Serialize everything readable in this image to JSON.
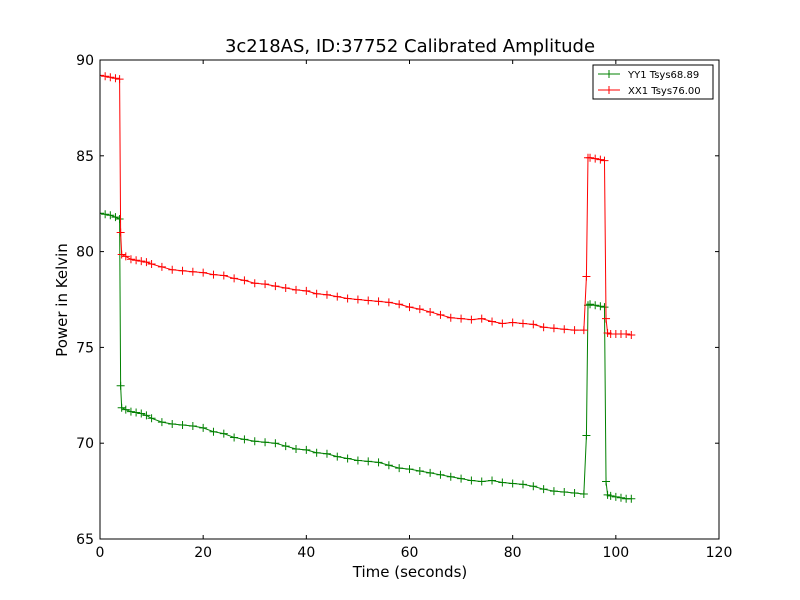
{
  "chart_data": {
    "type": "line",
    "title": "3c218AS, ID:37752 Calibrated Amplitude",
    "xlabel": "Time (seconds)",
    "ylabel": "Power in Kelvin",
    "xlim": [
      0,
      120
    ],
    "ylim": [
      65,
      90
    ],
    "x_ticks": [
      0,
      20,
      40,
      60,
      80,
      100,
      120
    ],
    "y_ticks": [
      65,
      70,
      75,
      80,
      85,
      90
    ],
    "grid": false,
    "legend_position": "top-right",
    "marker": "+",
    "series": [
      {
        "name": "YY1 Tsys68.89",
        "color": "#008000",
        "points": [
          [
            0,
            82.0
          ],
          [
            1,
            81.95
          ],
          [
            2,
            81.9
          ],
          [
            3,
            81.8
          ],
          [
            3.8,
            81.7
          ],
          [
            4.0,
            73.0
          ],
          [
            4.2,
            71.85
          ],
          [
            5,
            71.75
          ],
          [
            6,
            71.65
          ],
          [
            7,
            71.6
          ],
          [
            8,
            71.55
          ],
          [
            9,
            71.45
          ],
          [
            10,
            71.3
          ],
          [
            12,
            71.1
          ],
          [
            14,
            71.0
          ],
          [
            16,
            70.95
          ],
          [
            18,
            70.9
          ],
          [
            20,
            70.8
          ],
          [
            22,
            70.6
          ],
          [
            24,
            70.5
          ],
          [
            26,
            70.3
          ],
          [
            28,
            70.2
          ],
          [
            30,
            70.1
          ],
          [
            32,
            70.05
          ],
          [
            34,
            70.0
          ],
          [
            36,
            69.85
          ],
          [
            38,
            69.7
          ],
          [
            40,
            69.65
          ],
          [
            42,
            69.5
          ],
          [
            44,
            69.45
          ],
          [
            46,
            69.3
          ],
          [
            48,
            69.2
          ],
          [
            50,
            69.1
          ],
          [
            52,
            69.05
          ],
          [
            54,
            69.0
          ],
          [
            56,
            68.85
          ],
          [
            58,
            68.7
          ],
          [
            60,
            68.65
          ],
          [
            62,
            68.55
          ],
          [
            64,
            68.45
          ],
          [
            66,
            68.35
          ],
          [
            68,
            68.25
          ],
          [
            70,
            68.15
          ],
          [
            72,
            68.05
          ],
          [
            74,
            68.0
          ],
          [
            76,
            68.05
          ],
          [
            78,
            67.95
          ],
          [
            80,
            67.9
          ],
          [
            82,
            67.85
          ],
          [
            84,
            67.75
          ],
          [
            86,
            67.6
          ],
          [
            88,
            67.5
          ],
          [
            90,
            67.45
          ],
          [
            92,
            67.4
          ],
          [
            93.8,
            67.35
          ],
          [
            94.3,
            70.4
          ],
          [
            94.6,
            77.2
          ],
          [
            95,
            77.25
          ],
          [
            96,
            77.2
          ],
          [
            97,
            77.15
          ],
          [
            97.8,
            77.1
          ],
          [
            98.1,
            68.0
          ],
          [
            98.4,
            67.3
          ],
          [
            99,
            67.25
          ],
          [
            100,
            67.2
          ],
          [
            101,
            67.15
          ],
          [
            102,
            67.1
          ],
          [
            103,
            67.1
          ]
        ]
      },
      {
        "name": "XX1 Tsys76.00",
        "color": "#ff0000",
        "points": [
          [
            0,
            89.2
          ],
          [
            1,
            89.15
          ],
          [
            2,
            89.1
          ],
          [
            3,
            89.05
          ],
          [
            3.8,
            89.0
          ],
          [
            4.0,
            81.0
          ],
          [
            4.2,
            79.85
          ],
          [
            5,
            79.75
          ],
          [
            6,
            79.6
          ],
          [
            7,
            79.55
          ],
          [
            8,
            79.5
          ],
          [
            9,
            79.45
          ],
          [
            10,
            79.35
          ],
          [
            12,
            79.2
          ],
          [
            14,
            79.05
          ],
          [
            16,
            79.0
          ],
          [
            18,
            78.95
          ],
          [
            20,
            78.9
          ],
          [
            22,
            78.8
          ],
          [
            24,
            78.75
          ],
          [
            26,
            78.6
          ],
          [
            28,
            78.5
          ],
          [
            30,
            78.35
          ],
          [
            32,
            78.3
          ],
          [
            34,
            78.2
          ],
          [
            36,
            78.1
          ],
          [
            38,
            78.0
          ],
          [
            40,
            77.95
          ],
          [
            42,
            77.8
          ],
          [
            44,
            77.75
          ],
          [
            46,
            77.65
          ],
          [
            48,
            77.55
          ],
          [
            50,
            77.5
          ],
          [
            52,
            77.45
          ],
          [
            54,
            77.4
          ],
          [
            56,
            77.35
          ],
          [
            58,
            77.25
          ],
          [
            60,
            77.1
          ],
          [
            62,
            77.0
          ],
          [
            64,
            76.85
          ],
          [
            66,
            76.7
          ],
          [
            68,
            76.55
          ],
          [
            70,
            76.5
          ],
          [
            72,
            76.45
          ],
          [
            74,
            76.5
          ],
          [
            76,
            76.35
          ],
          [
            78,
            76.25
          ],
          [
            80,
            76.3
          ],
          [
            82,
            76.25
          ],
          [
            84,
            76.2
          ],
          [
            86,
            76.05
          ],
          [
            88,
            76.0
          ],
          [
            90,
            75.95
          ],
          [
            92,
            75.9
          ],
          [
            93.8,
            75.9
          ],
          [
            94.3,
            78.7
          ],
          [
            94.6,
            84.9
          ],
          [
            95,
            84.9
          ],
          [
            96,
            84.85
          ],
          [
            97,
            84.8
          ],
          [
            97.8,
            84.75
          ],
          [
            98.1,
            76.5
          ],
          [
            98.4,
            75.75
          ],
          [
            99,
            75.7
          ],
          [
            100,
            75.7
          ],
          [
            101,
            75.7
          ],
          [
            102,
            75.7
          ],
          [
            103,
            75.65
          ]
        ]
      }
    ]
  }
}
